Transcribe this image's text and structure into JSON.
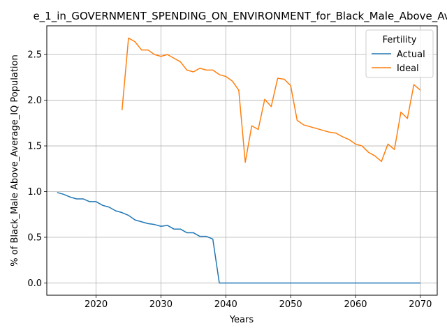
{
  "chart_data": {
    "type": "line",
    "title": "e_1_in_GOVERNMENT_SPENDING_ON_ENVIRONMENT_for_Black_Male_Above_Av",
    "xlabel": "Years",
    "ylabel": "% of Black_Male Above_Average_IQ Population",
    "xlim": [
      2012.4,
      2072.6
    ],
    "ylim": [
      -0.134,
      2.814
    ],
    "x_ticks": [
      2020,
      2030,
      2040,
      2050,
      2060,
      2070
    ],
    "y_ticks": [
      0.0,
      0.5,
      1.0,
      1.5,
      2.0,
      2.5
    ],
    "x_tick_labels": [
      "2020",
      "2030",
      "2040",
      "2050",
      "2060",
      "2070"
    ],
    "y_tick_labels": [
      "0.0",
      "0.5",
      "1.0",
      "1.5",
      "2.0",
      "2.5"
    ],
    "grid": true,
    "legend": {
      "title": "Fertility",
      "placement": "top-right"
    },
    "series": [
      {
        "name": "Actual",
        "color": "#1f77b4",
        "x": [
          2014,
          2015,
          2016,
          2017,
          2018,
          2019,
          2020,
          2021,
          2022,
          2023,
          2024,
          2025,
          2026,
          2027,
          2028,
          2029,
          2030,
          2031,
          2032,
          2033,
          2034,
          2035,
          2036,
          2037,
          2038,
          2039,
          2040,
          2041,
          2042,
          2043,
          2044,
          2045,
          2046,
          2047,
          2048,
          2049,
          2050,
          2051,
          2052,
          2053,
          2054,
          2055,
          2056,
          2057,
          2058,
          2059,
          2060,
          2061,
          2062,
          2063,
          2064,
          2065,
          2066,
          2067,
          2068,
          2069,
          2070
        ],
        "y": [
          0.99,
          0.97,
          0.94,
          0.92,
          0.92,
          0.89,
          0.89,
          0.85,
          0.83,
          0.79,
          0.77,
          0.74,
          0.69,
          0.67,
          0.65,
          0.64,
          0.62,
          0.63,
          0.59,
          0.59,
          0.55,
          0.55,
          0.51,
          0.51,
          0.48,
          0.0,
          0.0,
          0.0,
          0.0,
          0.0,
          0.0,
          0.0,
          0.0,
          0.0,
          0.0,
          0.0,
          0.0,
          0.0,
          0.0,
          0.0,
          0.0,
          0.0,
          0.0,
          0.0,
          0.0,
          0.0,
          0.0,
          0.0,
          0.0,
          0.0,
          0.0,
          0.0,
          0.0,
          0.0,
          0.0,
          0.0,
          0.0
        ]
      },
      {
        "name": "Ideal",
        "color": "#ff7f0e",
        "x": [
          2024,
          2025,
          2026,
          2027,
          2028,
          2029,
          2030,
          2031,
          2032,
          2033,
          2034,
          2035,
          2036,
          2037,
          2038,
          2039,
          2040,
          2041,
          2042,
          2043,
          2044,
          2045,
          2046,
          2047,
          2048,
          2049,
          2050,
          2051,
          2052,
          2053,
          2054,
          2055,
          2056,
          2057,
          2058,
          2059,
          2060,
          2061,
          2062,
          2063,
          2064,
          2065,
          2066,
          2067,
          2068,
          2069,
          2070
        ],
        "y": [
          1.89,
          2.68,
          2.64,
          2.55,
          2.55,
          2.5,
          2.48,
          2.5,
          2.46,
          2.42,
          2.33,
          2.31,
          2.35,
          2.33,
          2.33,
          2.28,
          2.26,
          2.21,
          2.11,
          1.32,
          1.72,
          1.68,
          2.01,
          1.93,
          2.24,
          2.23,
          2.16,
          1.78,
          1.73,
          1.71,
          1.69,
          1.67,
          1.65,
          1.64,
          1.6,
          1.57,
          1.52,
          1.5,
          1.43,
          1.39,
          1.33,
          1.52,
          1.46,
          1.87,
          1.8,
          2.17,
          2.11
        ]
      }
    ]
  }
}
